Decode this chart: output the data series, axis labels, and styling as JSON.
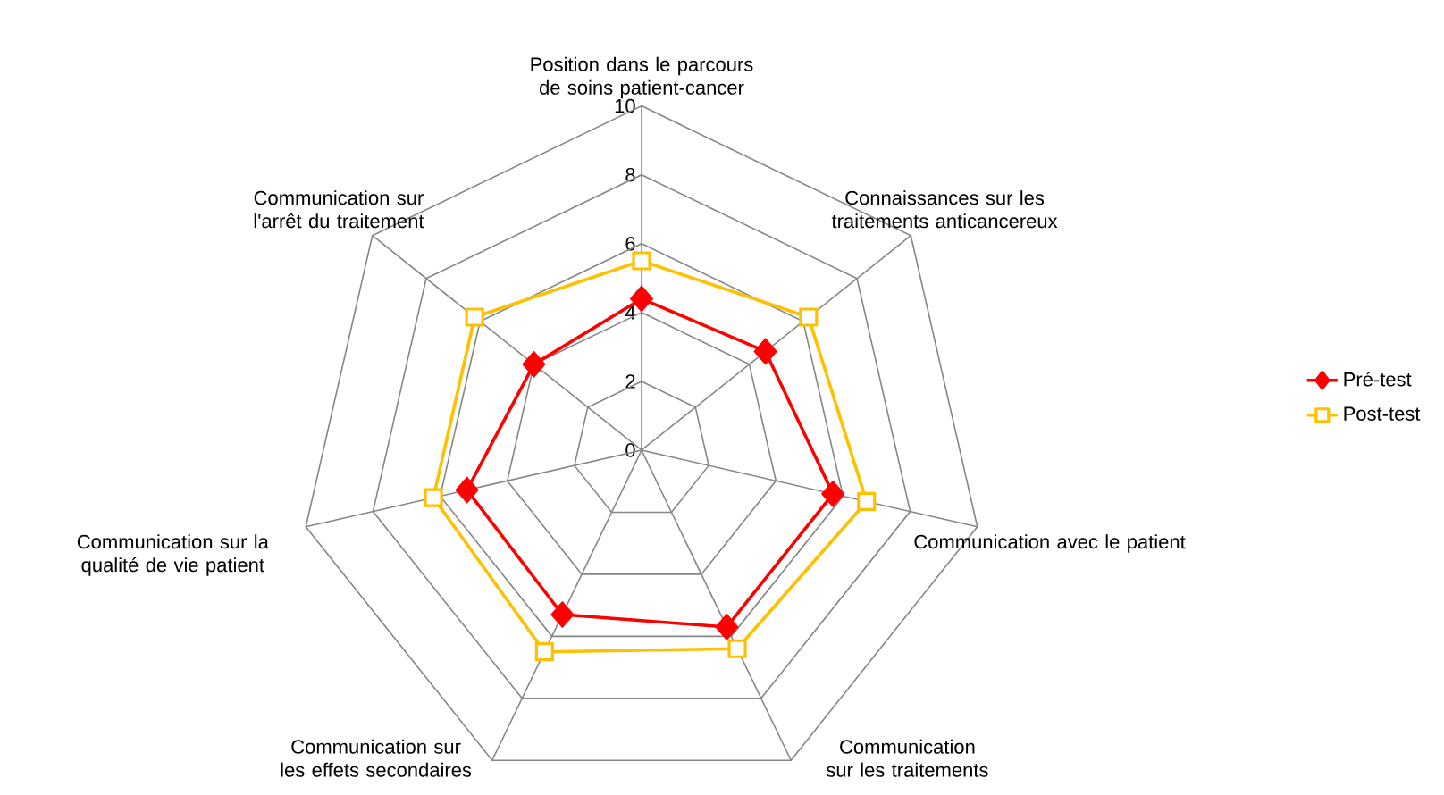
{
  "chart_data": {
    "type": "radar",
    "categories": [
      "Position dans le parcours de soins patient-cancer",
      "Connaissances sur les traitements anticancereux",
      "Communication avec le patient",
      "Communication sur les traitements",
      "Communication sur les effets secondaires",
      "Communication sur la qualité de vie patient",
      "Communication sur l'arrêt du traitement"
    ],
    "series": [
      {
        "name": "Pré-test",
        "color": "#ff0000",
        "marker": "diamond",
        "values": [
          4.4,
          4.6,
          5.7,
          5.7,
          5.3,
          5.2,
          4.0
        ]
      },
      {
        "name": "Post-test",
        "color": "#ffc000",
        "marker": "square",
        "values": [
          5.5,
          6.2,
          6.7,
          6.4,
          6.5,
          6.2,
          6.2
        ]
      }
    ],
    "ylim": [
      0,
      10
    ],
    "yticks": [
      0,
      2,
      4,
      6,
      8,
      10
    ],
    "grid": true,
    "legend": "right"
  }
}
